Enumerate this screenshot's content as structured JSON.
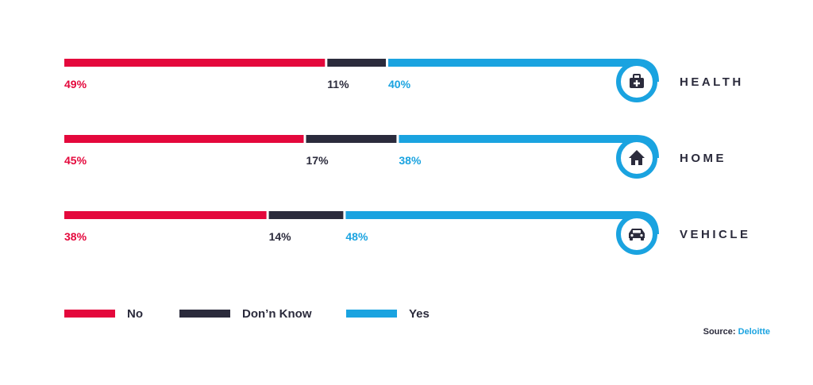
{
  "colors": {
    "No": "#e4083c",
    "Don'n Know": "#2b2b3c",
    "Yes": "#1aa3e0",
    "text": "#2b2b3c"
  },
  "chart_data": {
    "type": "bar",
    "orientation": "horizontal",
    "stacked": true,
    "percent": true,
    "categories": [
      "HEALTH",
      "HOME",
      "VEHICLE"
    ],
    "category_icons": [
      "medical-kit-icon",
      "house-icon",
      "car-icon"
    ],
    "series": [
      {
        "name": "No",
        "values": [
          49,
          45,
          38
        ],
        "labels": [
          "49%",
          "45%",
          "38%"
        ]
      },
      {
        "name": "Don’n Know",
        "values": [
          11,
          17,
          14
        ],
        "labels": [
          "11%",
          "17%",
          "14%"
        ]
      },
      {
        "name": "Yes",
        "values": [
          40,
          38,
          48
        ],
        "labels": [
          "40%",
          "38%",
          "48%"
        ]
      }
    ],
    "legend_position": "bottom",
    "grid": false
  },
  "source": {
    "label": "Source:",
    "value": "Deloitte"
  }
}
